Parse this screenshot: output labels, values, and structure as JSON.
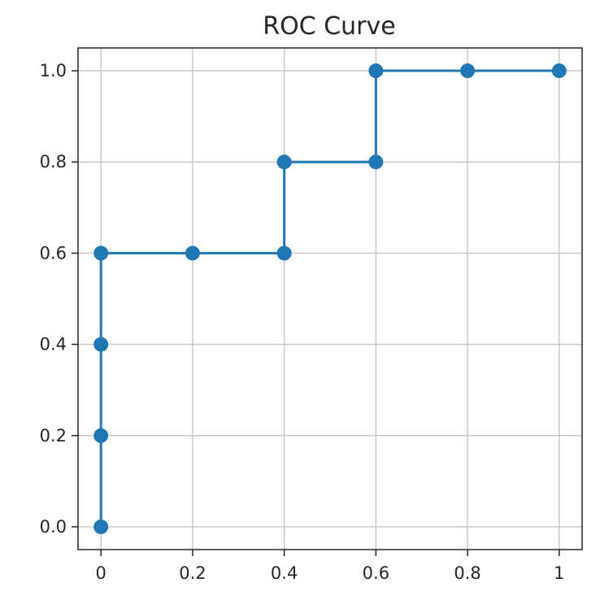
{
  "chart_data": {
    "type": "line",
    "title": "ROC Curve",
    "xlabel": "",
    "ylabel": "",
    "x": [
      0,
      0,
      0,
      0,
      0.2,
      0.4,
      0.4,
      0.6,
      0.6,
      0.8,
      1
    ],
    "series": [
      {
        "values": [
          0,
          0.2,
          0.4,
          0.6,
          0.6,
          0.6,
          0.8,
          0.8,
          1.0,
          1.0,
          1.0
        ],
        "color": "#1f77b4",
        "marker": "circle"
      }
    ],
    "xlim": [
      -0.05,
      1.05
    ],
    "ylim": [
      -0.05,
      1.05
    ],
    "x_ticks": [
      0,
      0.2,
      0.4,
      0.6,
      0.8,
      1
    ],
    "x_tick_labels": [
      "0",
      "0.2",
      "0.4",
      "0.6",
      "0.8",
      "1"
    ],
    "y_ticks": [
      0,
      0.2,
      0.4,
      0.6,
      0.8,
      1.0
    ],
    "y_tick_labels": [
      "0.0",
      "0.2",
      "0.4",
      "0.6",
      "0.8",
      "1.0"
    ],
    "grid": true,
    "legend": "none"
  }
}
